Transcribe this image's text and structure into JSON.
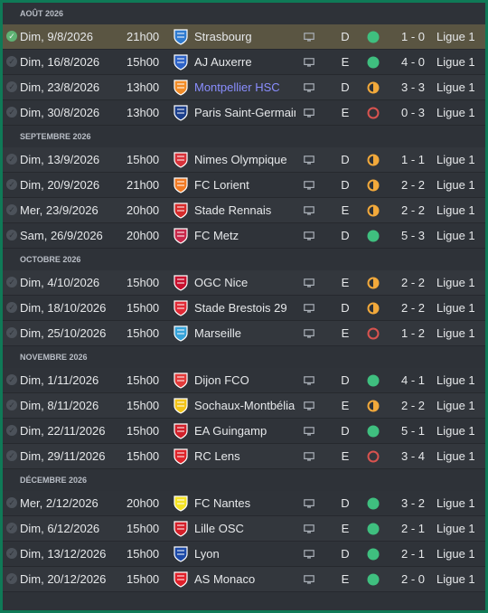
{
  "months": [
    {
      "label": "AOÛT 2026",
      "matches": [
        {
          "date": "Dim, 9/8/2026",
          "time": "21h00",
          "team": "Strasbourg",
          "crest": "strasbourg-crest",
          "crest_color": "#2f7bd0",
          "venue": "D",
          "result": "win",
          "score": "1 - 0",
          "comp": "Ligue 1",
          "highlight": true,
          "played": true
        },
        {
          "date": "Dim, 16/8/2026",
          "time": "15h00",
          "team": "AJ Auxerre",
          "crest": "auxerre-crest",
          "crest_color": "#2d62c6",
          "venue": "E",
          "result": "win",
          "score": "4 - 0",
          "comp": "Ligue 1",
          "played": true
        },
        {
          "date": "Dim, 23/8/2026",
          "time": "13h00",
          "team": "Montpellier HSC",
          "crest": "montpellier-crest",
          "crest_color": "#f28c28",
          "venue": "D",
          "result": "draw",
          "score": "3 - 3",
          "comp": "Ligue 1",
          "link": true,
          "played": true
        },
        {
          "date": "Dim, 30/8/2026",
          "time": "13h00",
          "team": "Paris Saint-Germain",
          "crest": "psg-crest",
          "crest_color": "#1c3f8c",
          "venue": "E",
          "result": "loss",
          "score": "0 - 3",
          "comp": "Ligue 1",
          "played": true
        }
      ]
    },
    {
      "label": "SEPTEMBRE 2026",
      "matches": [
        {
          "date": "Dim, 13/9/2026",
          "time": "15h00",
          "team": "Nimes Olympique",
          "crest": "nimes-crest",
          "crest_color": "#d8323a",
          "venue": "D",
          "result": "draw",
          "score": "1 - 1",
          "comp": "Ligue 1"
        },
        {
          "date": "Dim, 20/9/2026",
          "time": "21h00",
          "team": "FC Lorient",
          "crest": "lorient-crest",
          "crest_color": "#f07a24",
          "venue": "D",
          "result": "draw",
          "score": "2 - 2",
          "comp": "Ligue 1"
        },
        {
          "date": "Mer, 23/9/2026",
          "time": "20h00",
          "team": "Stade Rennais",
          "crest": "rennes-crest",
          "crest_color": "#d62b2b",
          "venue": "E",
          "result": "draw",
          "score": "2 - 2",
          "comp": "Ligue 1"
        },
        {
          "date": "Sam, 26/9/2026",
          "time": "20h00",
          "team": "FC Metz",
          "crest": "metz-crest",
          "crest_color": "#c8284a",
          "venue": "D",
          "result": "win",
          "score": "5 - 3",
          "comp": "Ligue 1"
        }
      ]
    },
    {
      "label": "OCTOBRE 2026",
      "matches": [
        {
          "date": "Dim, 4/10/2026",
          "time": "15h00",
          "team": "OGC Nice",
          "crest": "nice-crest",
          "crest_color": "#c8102e",
          "venue": "E",
          "result": "draw",
          "score": "2 - 2",
          "comp": "Ligue 1"
        },
        {
          "date": "Dim, 18/10/2026",
          "time": "15h00",
          "team": "Stade Brestois 29",
          "crest": "brest-crest",
          "crest_color": "#e12a36",
          "venue": "D",
          "result": "draw",
          "score": "2 - 2",
          "comp": "Ligue 1"
        },
        {
          "date": "Dim, 25/10/2026",
          "time": "15h00",
          "team": "Marseille",
          "crest": "marseille-crest",
          "crest_color": "#37a3d9",
          "venue": "E",
          "result": "loss",
          "score": "1 - 2",
          "comp": "Ligue 1"
        }
      ]
    },
    {
      "label": "NOVEMBRE 2026",
      "matches": [
        {
          "date": "Dim, 1/11/2026",
          "time": "15h00",
          "team": "Dijon FCO",
          "crest": "dijon-crest",
          "crest_color": "#e23a3a",
          "venue": "D",
          "result": "win",
          "score": "4 - 1",
          "comp": "Ligue 1"
        },
        {
          "date": "Dim, 8/11/2026",
          "time": "15h00",
          "team": "Sochaux-Montbéliard",
          "crest": "sochaux-crest",
          "crest_color": "#f2c318",
          "venue": "E",
          "result": "draw",
          "score": "2 - 2",
          "comp": "Ligue 1"
        },
        {
          "date": "Dim, 22/11/2026",
          "time": "15h00",
          "team": "EA Guingamp",
          "crest": "guingamp-crest",
          "crest_color": "#d0202a",
          "venue": "D",
          "result": "win",
          "score": "5 - 1",
          "comp": "Ligue 1"
        },
        {
          "date": "Dim, 29/11/2026",
          "time": "15h00",
          "team": "RC Lens",
          "crest": "lens-crest",
          "crest_color": "#e0242a",
          "venue": "E",
          "result": "loss",
          "score": "3 - 4",
          "comp": "Ligue 1"
        }
      ]
    },
    {
      "label": "DÉCEMBRE 2026",
      "matches": [
        {
          "date": "Mer, 2/12/2026",
          "time": "20h00",
          "team": "FC Nantes",
          "crest": "nantes-crest",
          "crest_color": "#f5e325",
          "venue": "D",
          "result": "win",
          "score": "3 - 2",
          "comp": "Ligue 1"
        },
        {
          "date": "Dim, 6/12/2026",
          "time": "15h00",
          "team": "Lille OSC",
          "crest": "lille-crest",
          "crest_color": "#d4202a",
          "venue": "E",
          "result": "win",
          "score": "2 - 1",
          "comp": "Ligue 1"
        },
        {
          "date": "Dim, 13/12/2026",
          "time": "15h00",
          "team": "Lyon",
          "crest": "lyon-crest",
          "crest_color": "#1d4aa8",
          "venue": "D",
          "result": "win",
          "score": "2 - 1",
          "comp": "Ligue 1"
        },
        {
          "date": "Dim, 20/12/2026",
          "time": "15h00",
          "team": "AS Monaco",
          "crest": "monaco-crest",
          "crest_color": "#e0202a",
          "venue": "E",
          "result": "win",
          "score": "2 - 0",
          "comp": "Ligue 1"
        }
      ]
    }
  ],
  "colors": {
    "win": "#3fbf7f",
    "draw": "#f2a93b",
    "loss": "#d9534f",
    "highlight_row": "#5a5542",
    "link": "#8a8eff"
  }
}
